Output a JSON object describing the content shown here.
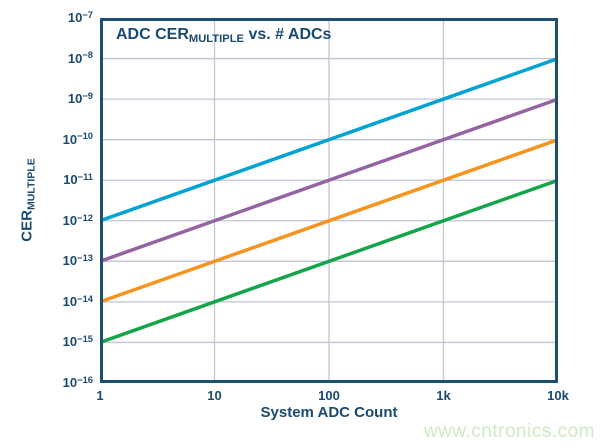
{
  "figure": {
    "background": "#ffffff",
    "text_color": "#1a4a70",
    "border_color": "#1d4f72",
    "grid_color": "#c3c5d3"
  },
  "watermark": {
    "text": "www.cntronics.com",
    "color": "#cdeac3"
  },
  "chart_data": {
    "type": "line",
    "title": "ADC CER_{MULTIPLE} vs. # ADCs",
    "xlabel": "System ADC Count",
    "ylabel": "CER_{MULTIPLE}",
    "x_scale": "log",
    "y_scale": "log",
    "xlim": [
      1,
      10000
    ],
    "ylim": [
      1e-16,
      1e-07
    ],
    "grid": true,
    "legend": false,
    "x_ticks": [
      {
        "value": 1,
        "label": "1"
      },
      {
        "value": 10,
        "label": "10"
      },
      {
        "value": 100,
        "label": "100"
      },
      {
        "value": 1000,
        "label": "1k"
      },
      {
        "value": 10000,
        "label": "10k"
      }
    ],
    "y_ticks": [
      {
        "value": 1e-07,
        "label": "10^{−7}"
      },
      {
        "value": 1e-08,
        "label": "10^{−8}"
      },
      {
        "value": 1e-09,
        "label": "10^{−9}"
      },
      {
        "value": 1e-10,
        "label": "10^{−10}"
      },
      {
        "value": 1e-11,
        "label": "10^{−11}"
      },
      {
        "value": 1e-12,
        "label": "10^{−12}"
      },
      {
        "value": 1e-13,
        "label": "10^{−13}"
      },
      {
        "value": 1e-14,
        "label": "10^{−14}"
      },
      {
        "value": 1e-15,
        "label": "10^{−15}"
      },
      {
        "value": 1e-16,
        "label": "10^{−16}"
      }
    ],
    "series": [
      {
        "color": "#00a3d1",
        "line_width": 3.5,
        "points": [
          [
            1,
            1e-12
          ],
          [
            10000,
            1e-08
          ]
        ]
      },
      {
        "color": "#9563a4",
        "line_width": 3.5,
        "points": [
          [
            1,
            1e-13
          ],
          [
            10000,
            1e-09
          ]
        ]
      },
      {
        "color": "#f7941e",
        "line_width": 3.5,
        "points": [
          [
            1,
            1e-14
          ],
          [
            10000,
            1e-10
          ]
        ]
      },
      {
        "color": "#13a54a",
        "line_width": 3.5,
        "points": [
          [
            1,
            1e-15
          ],
          [
            10000,
            1e-11
          ]
        ]
      }
    ]
  }
}
